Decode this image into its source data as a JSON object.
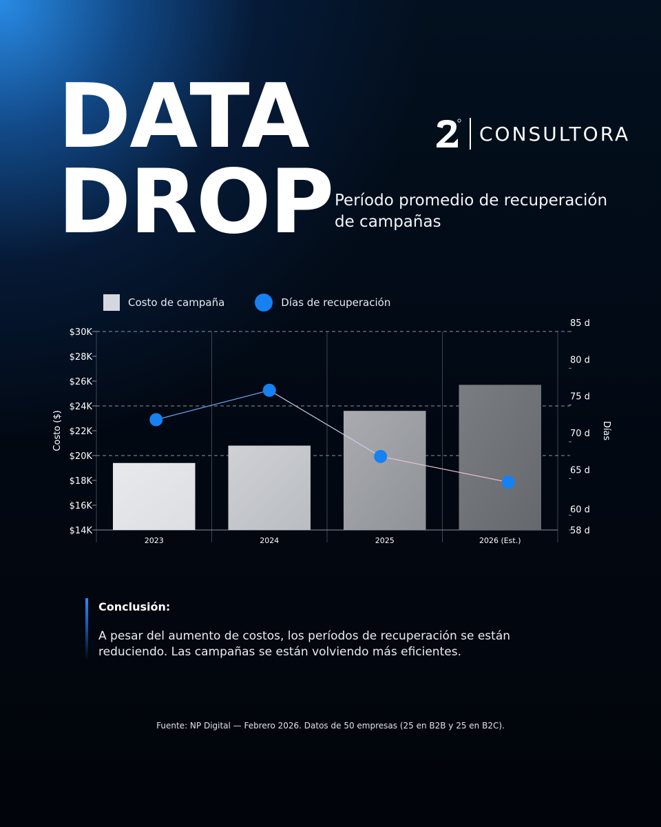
{
  "header": {
    "title_line1": "DATA",
    "title_line2": "DROP",
    "subtitle": "Período promedio de recuperación de campañas"
  },
  "brand": {
    "mark": "2",
    "name": "CONSULTORA"
  },
  "legend": {
    "bars_label": "Costo de campaña",
    "line_label": "Días de recuperación"
  },
  "chart_data": {
    "type": "bar",
    "categories": [
      "2023",
      "2024",
      "2025",
      "2026 (Est.)"
    ],
    "series": [
      {
        "name": "Costo de campaña",
        "type": "bar",
        "axis": "left",
        "values": [
          19400,
          20800,
          23600,
          25700
        ]
      },
      {
        "name": "Días de recuperación",
        "type": "line",
        "axis": "right",
        "values": [
          73,
          77,
          68,
          64.5
        ]
      }
    ],
    "ylabel_left": "Costo ($)",
    "ylabel_right": "Días",
    "y_left_ticks": [
      "$14K",
      "$16K",
      "$18K",
      "$20K",
      "$22K",
      "$24K",
      "$26K",
      "$28K",
      "$30K"
    ],
    "y_left_range": [
      14000,
      30000
    ],
    "y_right_ticks": [
      "58 d",
      "60 d",
      "65 d",
      "70 d",
      "75 d",
      "80 d",
      "85 d"
    ],
    "y_right_range": [
      58,
      85
    ],
    "legend_position": "top-left",
    "colors": {
      "bar_fill_start": "#e9ebee",
      "bar_fill_end": "#6f7379",
      "line": "#1681f2",
      "line_segment_fade": "#e7c3d0"
    }
  },
  "conclusion": {
    "title": "Conclusión:",
    "text": "A pesar del aumento de costos, los períodos de recuperación se están reduciendo. Las campañas se están volviendo más eficientes."
  },
  "footer": {
    "source": "Fuente: NP Digital — Febrero 2026. Datos de 50 empresas (25 en B2B y 25 en B2C)."
  }
}
